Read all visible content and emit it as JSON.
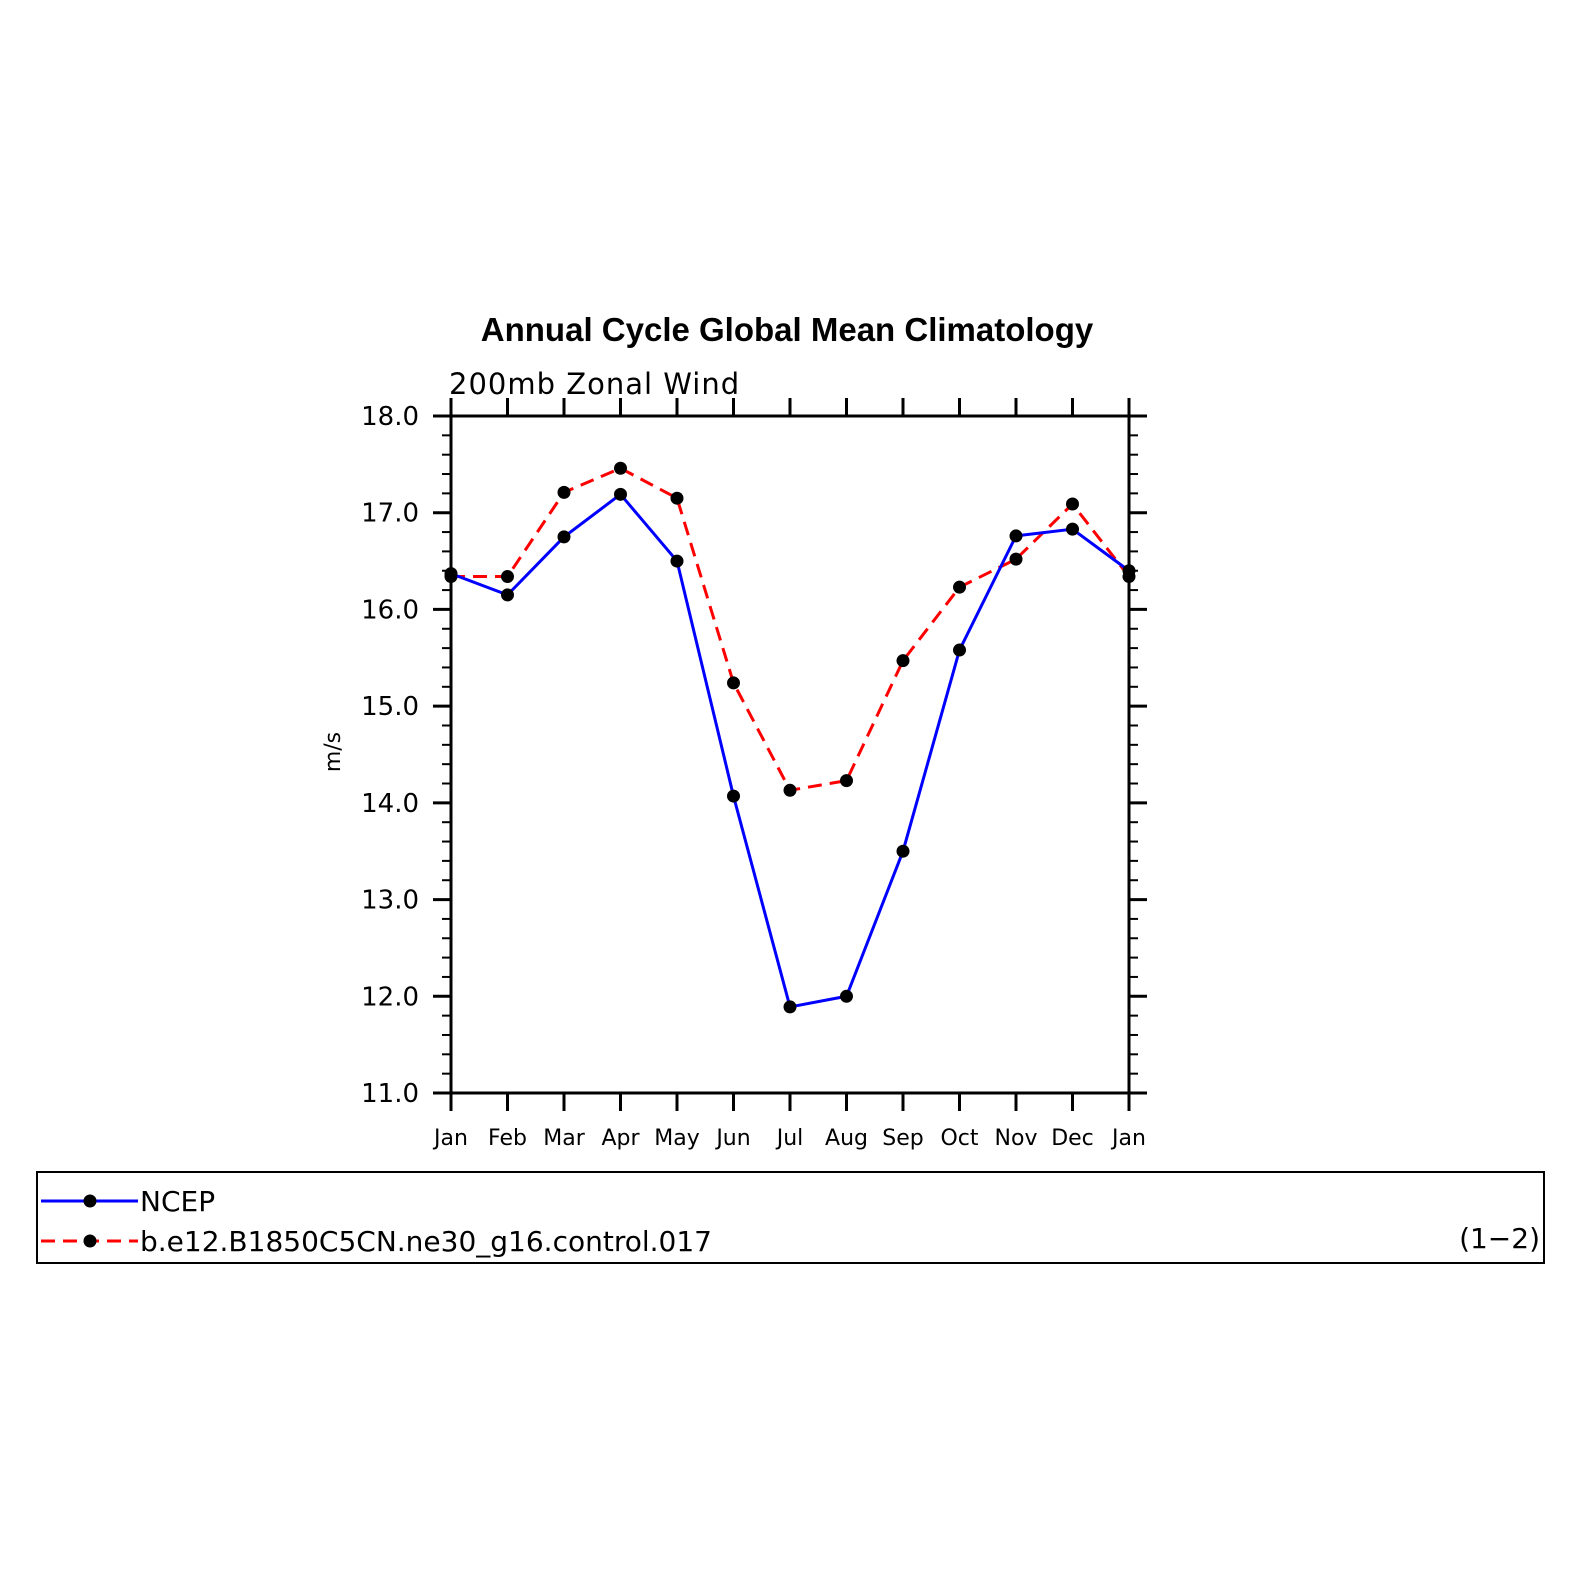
{
  "chart_data": {
    "type": "line",
    "title": "Annual Cycle Global Mean Climatology",
    "subtitle": "200mb  Zonal  Wind",
    "ylabel": "m/s",
    "xlabel": "",
    "categories": [
      "Jan",
      "Feb",
      "Mar",
      "Apr",
      "May",
      "Jun",
      "Jul",
      "Aug",
      "Sep",
      "Oct",
      "Nov",
      "Dec",
      "Jan"
    ],
    "ylim": [
      11.0,
      18.0
    ],
    "yticks": [
      "11.0",
      "12.0",
      "13.0",
      "14.0",
      "15.0",
      "16.0",
      "17.0",
      "18.0"
    ],
    "grid": false,
    "legend_position": "bottom",
    "series": [
      {
        "name": "NCEP",
        "color": "#0000ff",
        "dash": "solid",
        "values": [
          16.37,
          16.15,
          16.75,
          17.19,
          16.5,
          14.07,
          11.89,
          12.0,
          13.5,
          15.58,
          16.76,
          16.83,
          16.4
        ]
      },
      {
        "name": "b.e12.B1850C5CN.ne30_g16.control.017",
        "color": "#ff0000",
        "dash": "dashed",
        "values": [
          16.34,
          16.34,
          17.21,
          17.46,
          17.15,
          15.24,
          14.13,
          14.23,
          15.47,
          16.23,
          16.52,
          17.09,
          16.34
        ]
      }
    ],
    "annotation": "(1−2)"
  }
}
